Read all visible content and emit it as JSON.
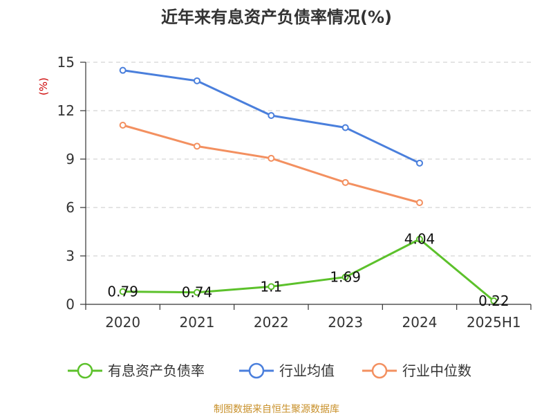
{
  "chart_data": {
    "type": "line",
    "title": "近年来有息资产负债率情况(%)",
    "ylabel": "(%)",
    "categories": [
      "2020",
      "2021",
      "2022",
      "2023",
      "2024",
      "2025H1"
    ],
    "ylim": [
      0,
      15
    ],
    "yticks": [
      0,
      3,
      6,
      9,
      12,
      15
    ],
    "grid": true,
    "legend_position": "bottom",
    "series": [
      {
        "name": "有息资产负债率",
        "color": "#5cc12b",
        "values": [
          0.79,
          0.74,
          1.1,
          1.69,
          4.04,
          0.22
        ],
        "labels": [
          "0.79",
          "0.74",
          "1.1",
          "1.69",
          "4.04",
          "0.22"
        ]
      },
      {
        "name": "行业均值",
        "color": "#4a7fdc",
        "values": [
          14.5,
          13.85,
          11.7,
          10.95,
          8.75,
          null
        ]
      },
      {
        "name": "行业中位数",
        "color": "#f39060",
        "values": [
          11.1,
          9.8,
          9.05,
          7.55,
          6.3,
          null
        ]
      }
    ]
  },
  "footer": {
    "source": "制图数据来自恒生聚源数据库"
  }
}
